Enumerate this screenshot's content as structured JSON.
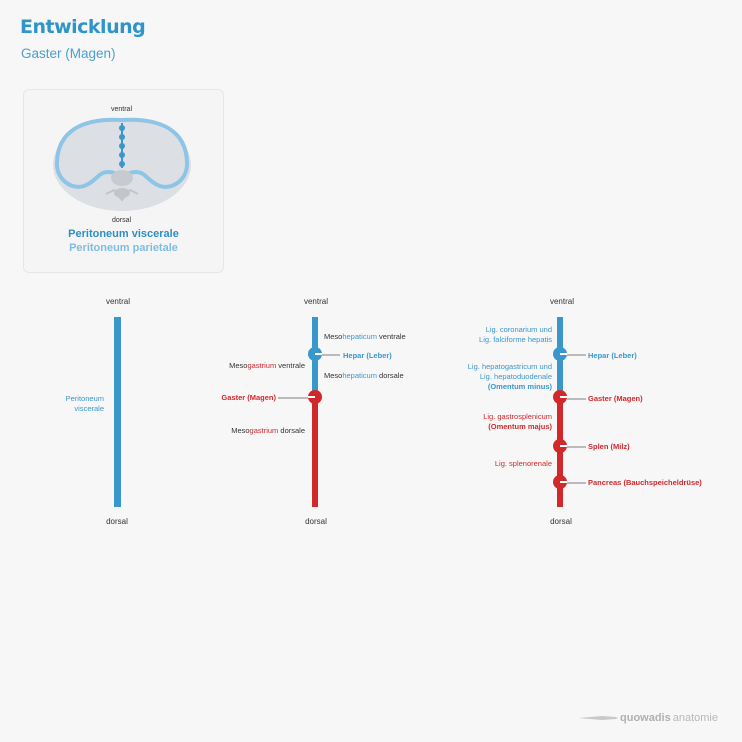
{
  "header": {
    "title": "Entwicklung",
    "subtitle": "Gaster (Magen)"
  },
  "legend": {
    "ventral": "ventral",
    "dorsal": "dorsal",
    "visceral": "Peritoneum viscerale",
    "parietal": "Peritoneum parietale"
  },
  "colors": {
    "visceral_blue": "#3a97cc",
    "parietal_light_blue": "#8ec4e6",
    "mesogastrium_red": "#d1282c"
  },
  "diagram1": {
    "ventral": "ventral",
    "dorsal": "dorsal",
    "label_line1": "Peritoneum",
    "label_line2": "viscerale"
  },
  "diagram2": {
    "ventral": "ventral",
    "dorsal": "dorsal",
    "meso_ventrale": {
      "a": "Meso",
      "b": "hepaticum",
      "c": " ventrale"
    },
    "hepar": "Hepar (Leber)",
    "meso_dorsale_hep": {
      "a": "Meso",
      "b": "hepaticum",
      "c": " dorsale"
    },
    "mesogastrium_ventrale": {
      "a": "Meso",
      "b": "gastrium",
      "c": " ventrale"
    },
    "gaster": "Gaster (Magen)",
    "mesogastrium_dorsale": {
      "a": "Meso",
      "b": "gastrium",
      "c": " dorsale"
    }
  },
  "diagram3": {
    "ventral": "ventral",
    "dorsal": "dorsal",
    "lig_coronarium_1": "Lig. coronarium und",
    "lig_coronarium_2": "Lig. falciforme hepatis",
    "hepar": "Hepar (Leber)",
    "lig_hepatogastricum_1": "Lig. hepatogastricum und",
    "lig_hepatogastricum_2": "Lig. hepatoduodenale",
    "omentum_minus": "(Omentum minus)",
    "gaster": "Gaster (Magen)",
    "lig_gastrosplenicum": "Lig. gastrosplenicum",
    "omentum_majus": "(Omentum majus)",
    "splen": "Splen (Milz)",
    "lig_splenorenale": "Lig. splenorenale",
    "pancreas": "Pancreas (Bauchspeicheldrüse)"
  },
  "brand": {
    "name_bold": "quowadis",
    "name_light": " anatomie"
  }
}
